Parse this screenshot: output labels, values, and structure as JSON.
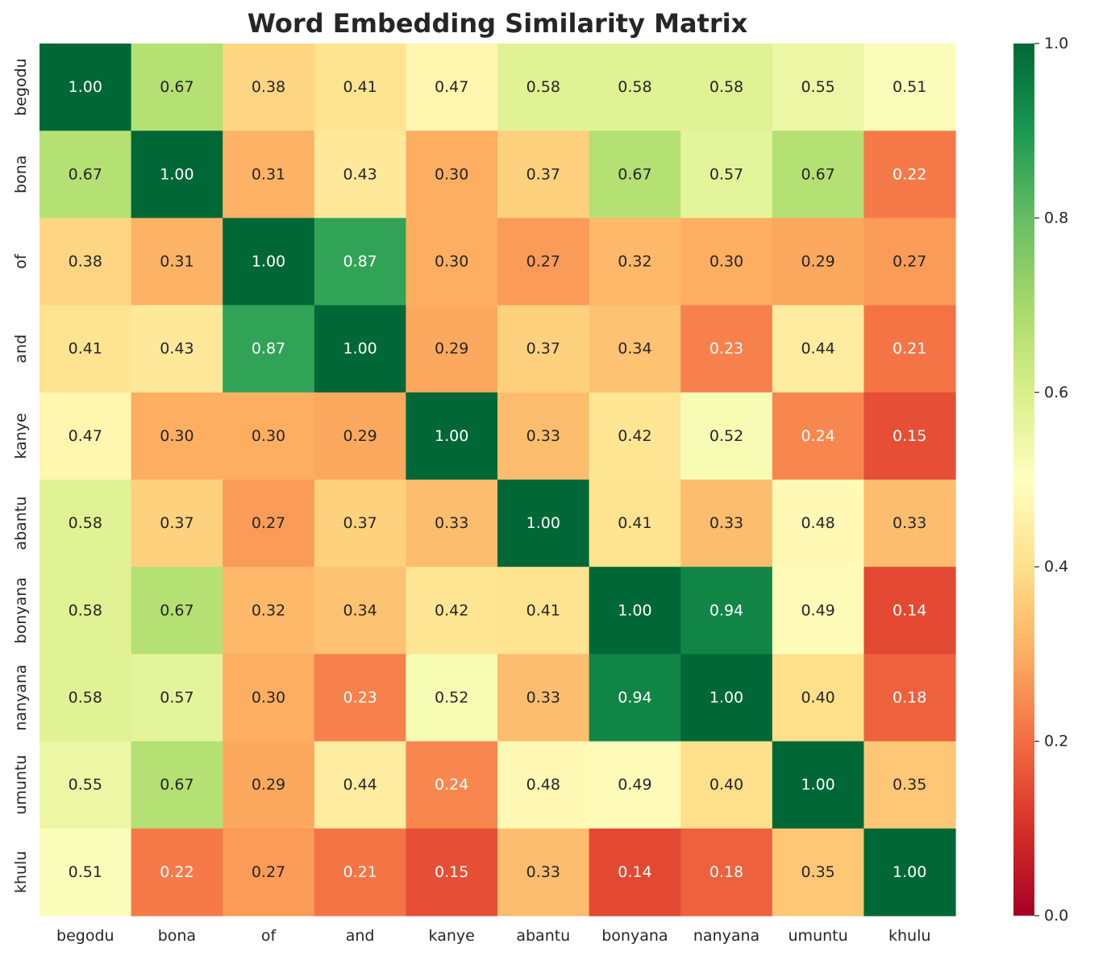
{
  "chart_data": {
    "type": "heatmap",
    "title": "Word Embedding Similarity Matrix",
    "x_categories": [
      "begodu",
      "bona",
      "of",
      "and",
      "kanye",
      "abantu",
      "bonyana",
      "nanyana",
      "umuntu",
      "khulu"
    ],
    "y_categories": [
      "begodu",
      "bona",
      "of",
      "and",
      "kanye",
      "abantu",
      "bonyana",
      "nanyana",
      "umuntu",
      "khulu"
    ],
    "values": [
      [
        1.0,
        0.67,
        0.38,
        0.41,
        0.47,
        0.58,
        0.58,
        0.58,
        0.55,
        0.51
      ],
      [
        0.67,
        1.0,
        0.31,
        0.43,
        0.3,
        0.37,
        0.67,
        0.57,
        0.67,
        0.22
      ],
      [
        0.38,
        0.31,
        1.0,
        0.87,
        0.3,
        0.27,
        0.32,
        0.3,
        0.29,
        0.27
      ],
      [
        0.41,
        0.43,
        0.87,
        1.0,
        0.29,
        0.37,
        0.34,
        0.23,
        0.44,
        0.21
      ],
      [
        0.47,
        0.3,
        0.3,
        0.29,
        1.0,
        0.33,
        0.42,
        0.52,
        0.24,
        0.15
      ],
      [
        0.58,
        0.37,
        0.27,
        0.37,
        0.33,
        1.0,
        0.41,
        0.33,
        0.48,
        0.33
      ],
      [
        0.58,
        0.67,
        0.32,
        0.34,
        0.42,
        0.41,
        1.0,
        0.94,
        0.49,
        0.14
      ],
      [
        0.58,
        0.57,
        0.3,
        0.23,
        0.52,
        0.33,
        0.94,
        1.0,
        0.4,
        0.18
      ],
      [
        0.55,
        0.67,
        0.29,
        0.44,
        0.24,
        0.48,
        0.49,
        0.4,
        1.0,
        0.35
      ],
      [
        0.51,
        0.22,
        0.27,
        0.21,
        0.15,
        0.33,
        0.14,
        0.18,
        0.35,
        1.0
      ]
    ],
    "value_format": "0.00",
    "colormap": "RdYlGn",
    "colormap_stops": [
      "#a50026",
      "#d73027",
      "#f46d43",
      "#fdae61",
      "#fee08b",
      "#ffffbf",
      "#d9ef8b",
      "#a6d96a",
      "#66bd63",
      "#1a9850",
      "#006837"
    ],
    "color_range": [
      0.0,
      1.0
    ],
    "colorbar": {
      "ticks": [
        0.0,
        0.2,
        0.4,
        0.6,
        0.8,
        1.0
      ],
      "tick_labels": [
        "0.0",
        "0.2",
        "0.4",
        "0.6",
        "0.8",
        "1.0"
      ]
    },
    "grid": false,
    "legend": "colorbar-right"
  }
}
